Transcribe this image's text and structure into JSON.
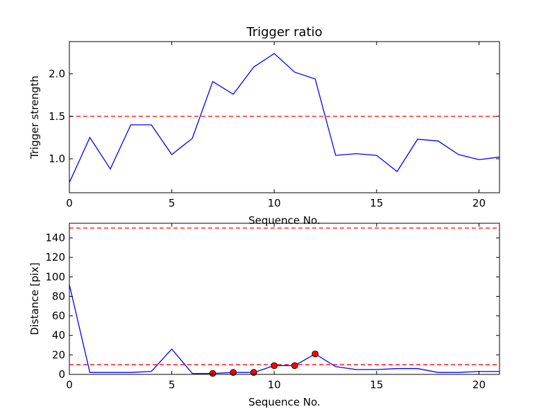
{
  "chart_data": [
    {
      "type": "line",
      "title": "Trigger ratio",
      "xlabel": "Sequence No.",
      "ylabel": "Trigger strength",
      "xlim": [
        0,
        21
      ],
      "ylim": [
        0.6,
        2.38
      ],
      "xticks": [
        0,
        5,
        10,
        15,
        20
      ],
      "yticks": [
        1.0,
        1.5,
        2.0
      ],
      "ytick_labels": [
        "1.0",
        "1.5",
        "2.0"
      ],
      "series": [
        {
          "color": "#0000ff",
          "x": [
            0,
            1,
            2,
            3,
            4,
            5,
            6,
            7,
            8,
            9,
            10,
            11,
            12,
            13,
            14,
            15,
            16,
            17,
            18,
            19,
            20,
            21
          ],
          "y": [
            0.72,
            1.25,
            0.88,
            1.4,
            1.4,
            1.05,
            1.24,
            1.91,
            1.76,
            2.08,
            2.24,
            2.02,
            1.94,
            1.04,
            1.06,
            1.04,
            0.85,
            1.23,
            1.21,
            1.05,
            0.99,
            1.02
          ]
        }
      ],
      "hlines": [
        {
          "y": 1.5,
          "color": "#ff0000",
          "style": "dashed"
        }
      ]
    },
    {
      "type": "line",
      "title": "",
      "xlabel": "Sequence No.",
      "ylabel": "Distance [pix]",
      "xlim": [
        0,
        21
      ],
      "ylim": [
        0,
        155
      ],
      "xticks": [
        0,
        5,
        10,
        15,
        20
      ],
      "yticks": [
        0,
        20,
        40,
        60,
        80,
        100,
        120,
        140
      ],
      "ytick_labels": [
        "0",
        "20",
        "40",
        "60",
        "80",
        "100",
        "120",
        "140"
      ],
      "series": [
        {
          "color": "#0000ff",
          "x": [
            0,
            1,
            2,
            3,
            4,
            5,
            6,
            7,
            8,
            9,
            10,
            11,
            12,
            13,
            14,
            15,
            16,
            17,
            18,
            19,
            20,
            21
          ],
          "y": [
            92,
            2,
            2,
            2,
            3,
            26,
            1,
            1,
            2,
            2,
            9,
            9,
            21,
            8,
            5,
            5,
            6,
            6,
            2,
            2,
            3,
            3
          ]
        }
      ],
      "markers": {
        "color": "#ff0000",
        "x": [
          7,
          8,
          9,
          10,
          11,
          12
        ],
        "y": [
          1,
          2,
          2,
          9,
          9,
          21
        ]
      },
      "hlines": [
        {
          "y": 150,
          "color": "#ff0000",
          "style": "dashed"
        },
        {
          "y": 10,
          "color": "#ff0000",
          "style": "dashed"
        }
      ]
    }
  ]
}
